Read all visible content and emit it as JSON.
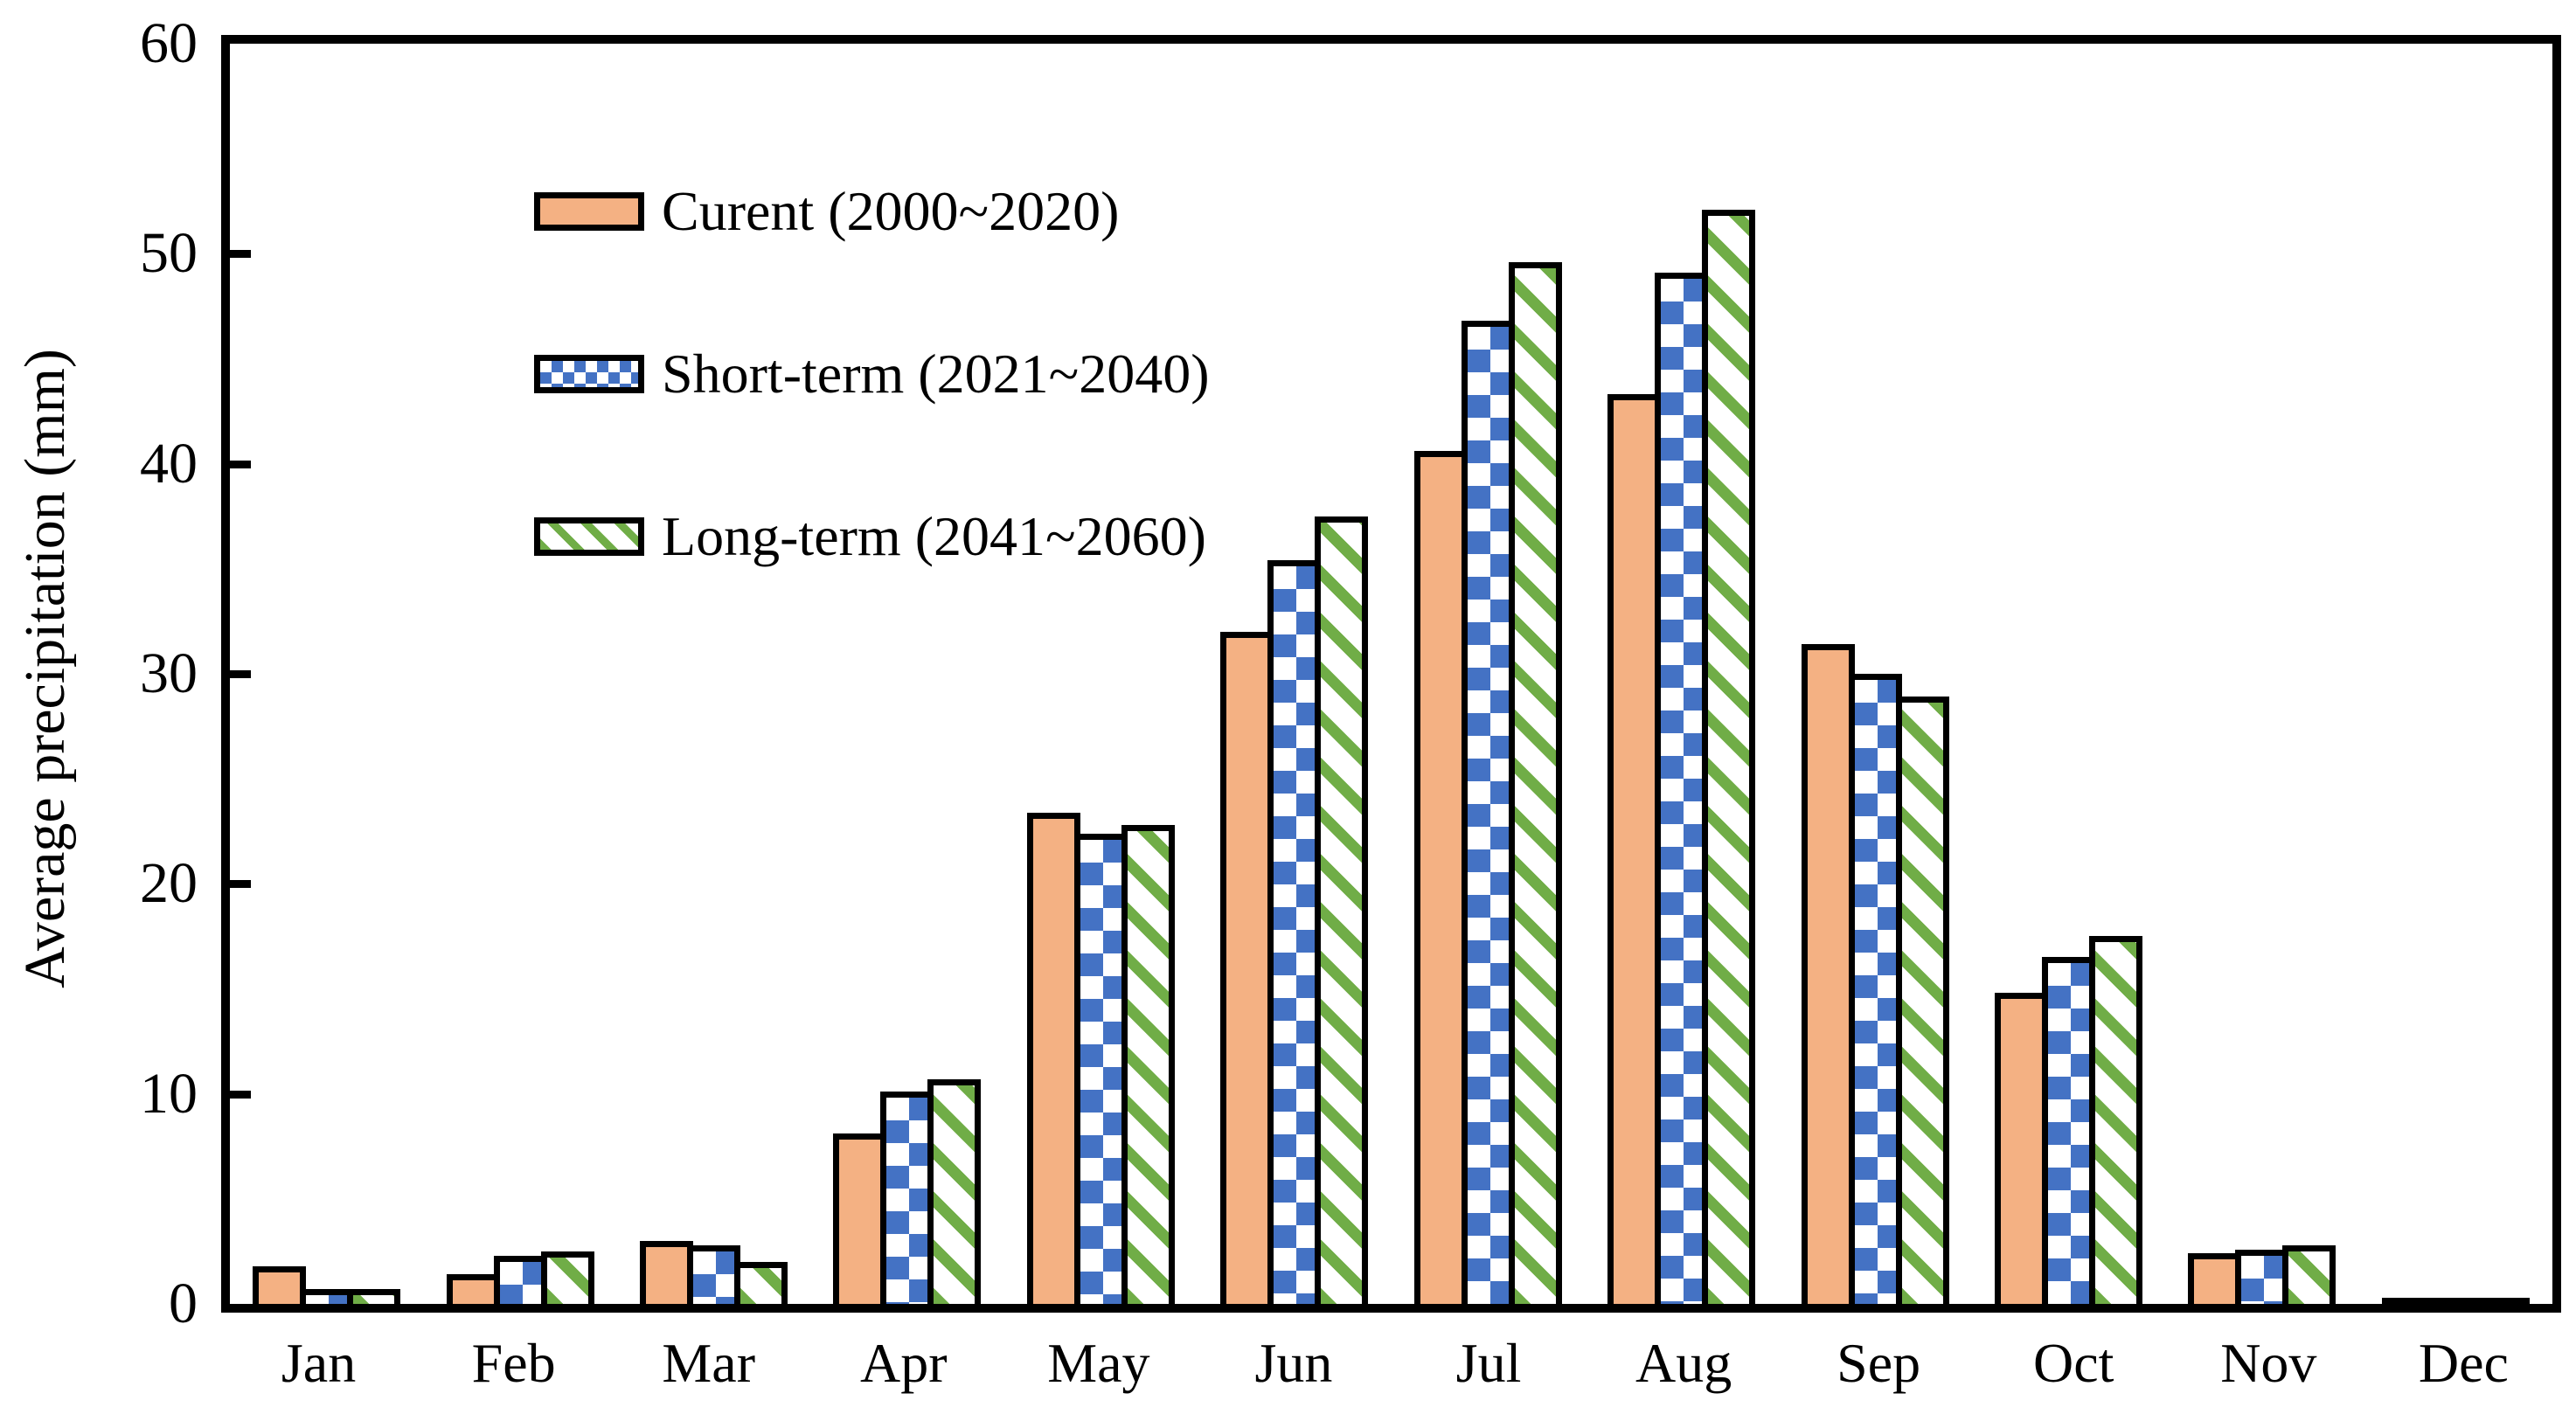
{
  "colors": {
    "orange": "#F4B183",
    "blue": "#4472C4",
    "green": "#70AD47",
    "frame": "#000000",
    "background": "#FFFFFF"
  },
  "chart_data": {
    "type": "bar",
    "title": "",
    "xlabel": "",
    "ylabel": "Average precipitation (mm)",
    "ylim": [
      0,
      60
    ],
    "yticks": [
      0,
      10,
      20,
      30,
      40,
      50,
      60
    ],
    "grid": false,
    "legend_position": "top-left-inside",
    "categories": [
      "Jan",
      "Feb",
      "Mar",
      "Apr",
      "May",
      "Jun",
      "Jul",
      "Aug",
      "Sep",
      "Oct",
      "Nov",
      "Dec"
    ],
    "series": [
      {
        "name": "Curent (2000~2020)",
        "pattern": "solid",
        "color": "#F4B183",
        "values": [
          1.8,
          1.4,
          3.0,
          8.1,
          23.4,
          32.0,
          40.6,
          43.3,
          31.4,
          14.8,
          2.4,
          0.3
        ]
      },
      {
        "name": "Short-term (2021~2040)",
        "pattern": "checker",
        "color": "#4472C4",
        "values": [
          0.7,
          2.3,
          2.8,
          10.1,
          22.4,
          35.4,
          46.8,
          49.1,
          30.0,
          16.5,
          2.6,
          0.2
        ]
      },
      {
        "name": "Long-term (2041~2060)",
        "pattern": "stripes",
        "color": "#70AD47",
        "values": [
          0.7,
          2.5,
          2.0,
          10.7,
          22.8,
          37.5,
          49.6,
          52.1,
          28.9,
          17.5,
          2.8,
          0.2
        ]
      }
    ]
  }
}
